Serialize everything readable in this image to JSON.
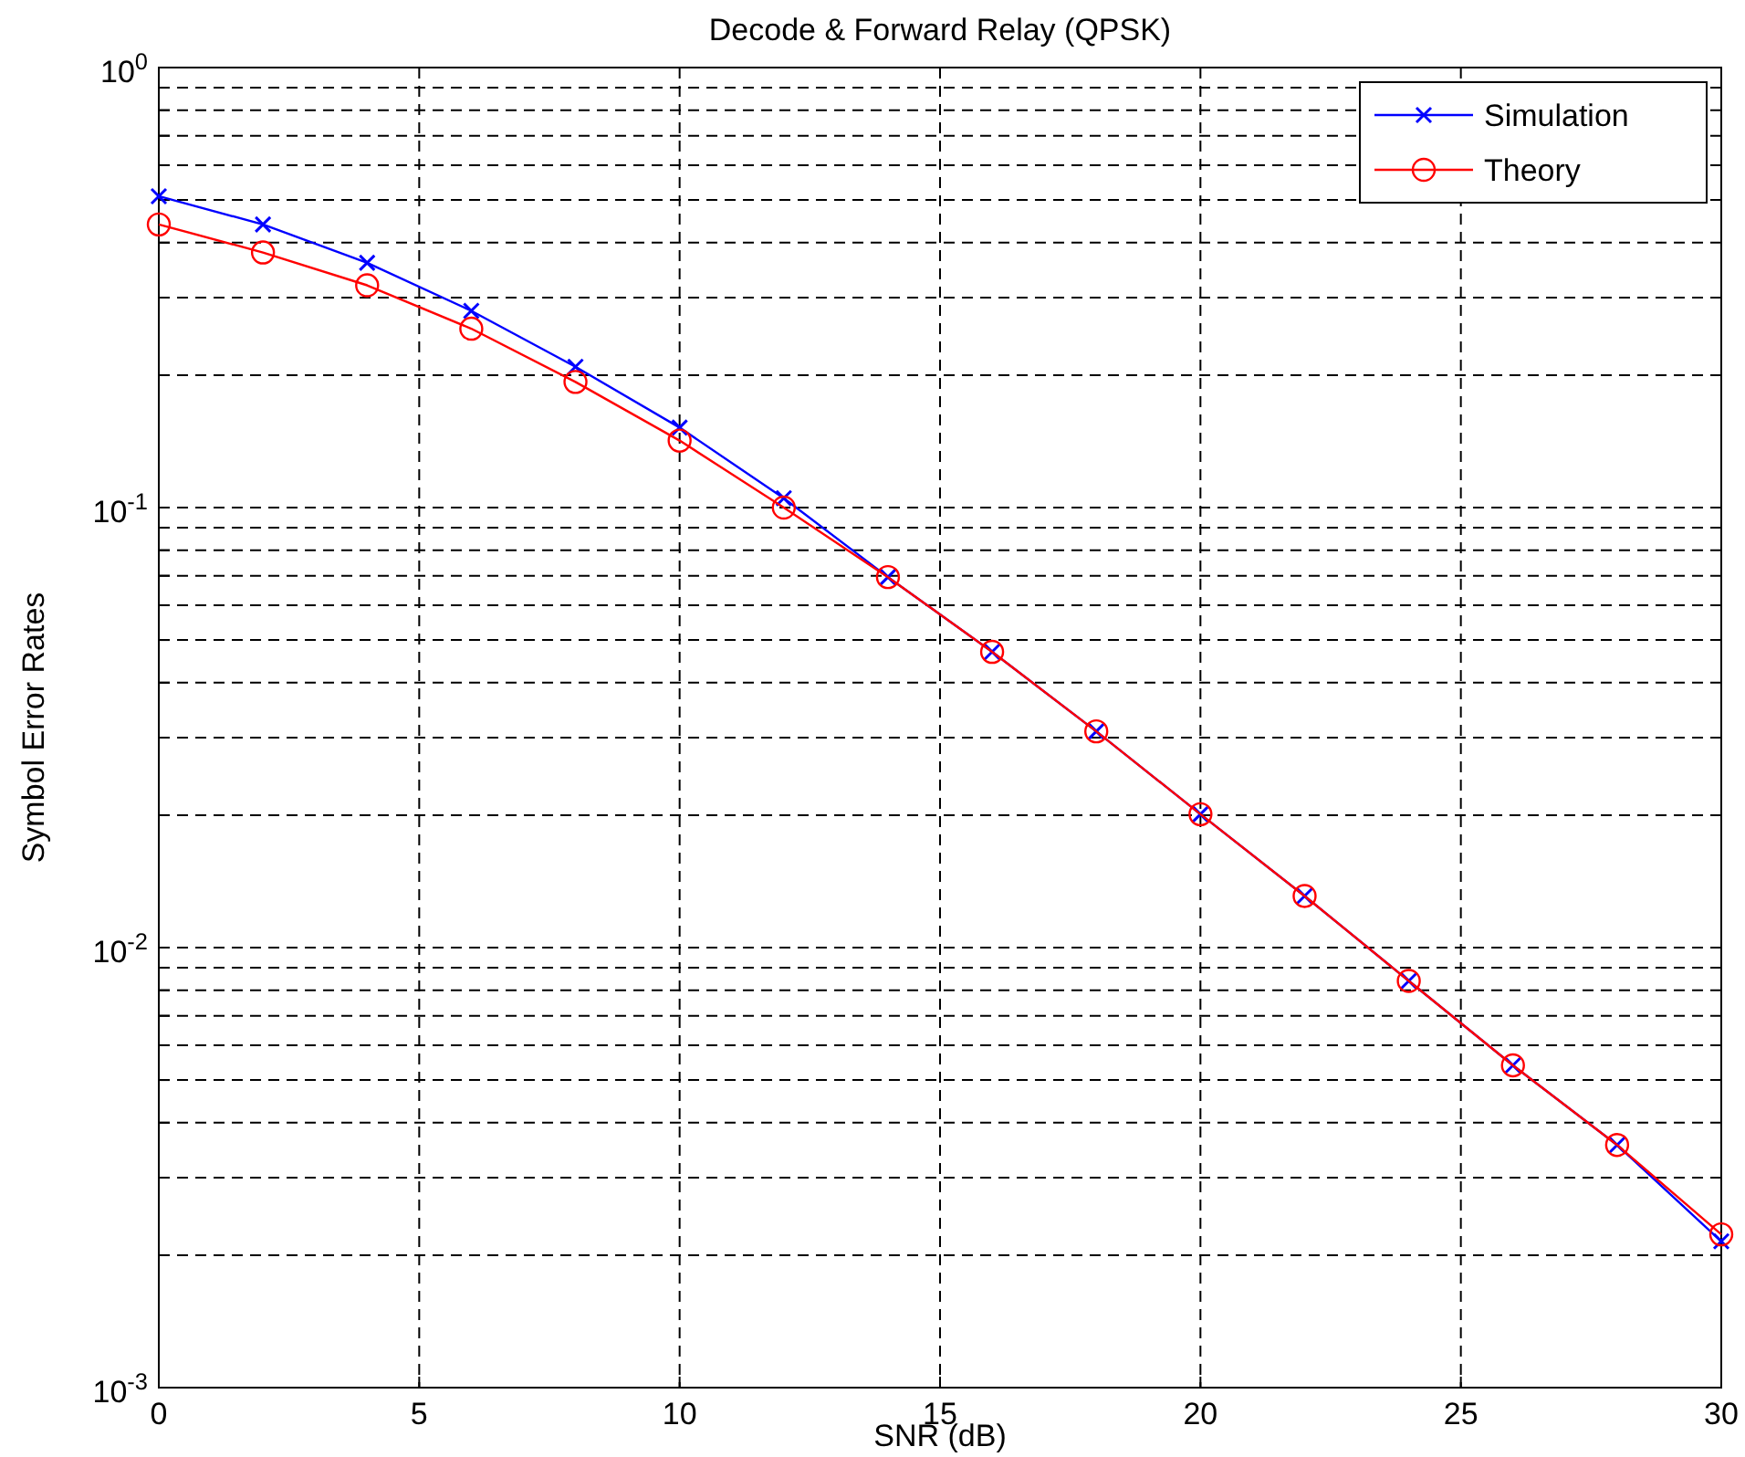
{
  "chart_data": {
    "type": "line",
    "title": "Decode & Forward Relay (QPSK)",
    "xlabel": "SNR (dB)",
    "ylabel": "Symbol Error Rates",
    "x": [
      0,
      2,
      4,
      6,
      8,
      10,
      12,
      14,
      16,
      18,
      20,
      22,
      24,
      26,
      28,
      30
    ],
    "series": [
      {
        "name": "Simulation",
        "color": "#0000ff",
        "marker": "cross",
        "values": [
          0.51,
          0.44,
          0.36,
          0.28,
          0.209,
          0.152,
          0.105,
          0.0695,
          0.047,
          0.031,
          0.0201,
          0.0131,
          0.0084,
          0.0054,
          0.00356,
          0.00215
        ]
      },
      {
        "name": "Theory",
        "color": "#ff0000",
        "marker": "circle",
        "values": [
          0.44,
          0.38,
          0.32,
          0.255,
          0.193,
          0.142,
          0.1,
          0.0695,
          0.047,
          0.031,
          0.0201,
          0.0131,
          0.0084,
          0.0054,
          0.00356,
          0.00223
        ]
      }
    ],
    "log": "y",
    "xlim": [
      0,
      30
    ],
    "ylim": [
      0.001,
      1
    ],
    "xticks": [
      0,
      5,
      10,
      15,
      20,
      25,
      30
    ],
    "yticks": [
      {
        "value": 0.001,
        "label": "10$^{-3}$"
      },
      {
        "value": 0.002,
        "label": null
      },
      {
        "value": 0.003,
        "label": null
      },
      {
        "value": 0.004,
        "label": null
      },
      {
        "value": 0.005,
        "label": null
      },
      {
        "value": 0.006,
        "label": null
      },
      {
        "value": 0.007,
        "label": null
      },
      {
        "value": 0.008,
        "label": null
      },
      {
        "value": 0.009,
        "label": null
      },
      {
        "value": 0.01,
        "label": "10$^{-2}$"
      },
      {
        "value": 0.02,
        "label": null
      },
      {
        "value": 0.03,
        "label": null
      },
      {
        "value": 0.04,
        "label": null
      },
      {
        "value": 0.05,
        "label": null
      },
      {
        "value": 0.06,
        "label": null
      },
      {
        "value": 0.07,
        "label": null
      },
      {
        "value": 0.08,
        "label": null
      },
      {
        "value": 0.09,
        "label": null
      },
      {
        "value": 0.1,
        "label": "10$^{-1}$"
      },
      {
        "value": 0.2,
        "label": null
      },
      {
        "value": 0.3,
        "label": null
      },
      {
        "value": 0.4,
        "label": null
      },
      {
        "value": 0.5,
        "label": null
      },
      {
        "value": 0.6,
        "label": null
      },
      {
        "value": 0.7,
        "label": null
      },
      {
        "value": 0.8,
        "label": null
      },
      {
        "value": 0.9,
        "label": null
      },
      {
        "value": 1,
        "label": "10$^{0}$"
      }
    ],
    "grid": true,
    "legend": "top right",
    "line_style": "solid"
  }
}
